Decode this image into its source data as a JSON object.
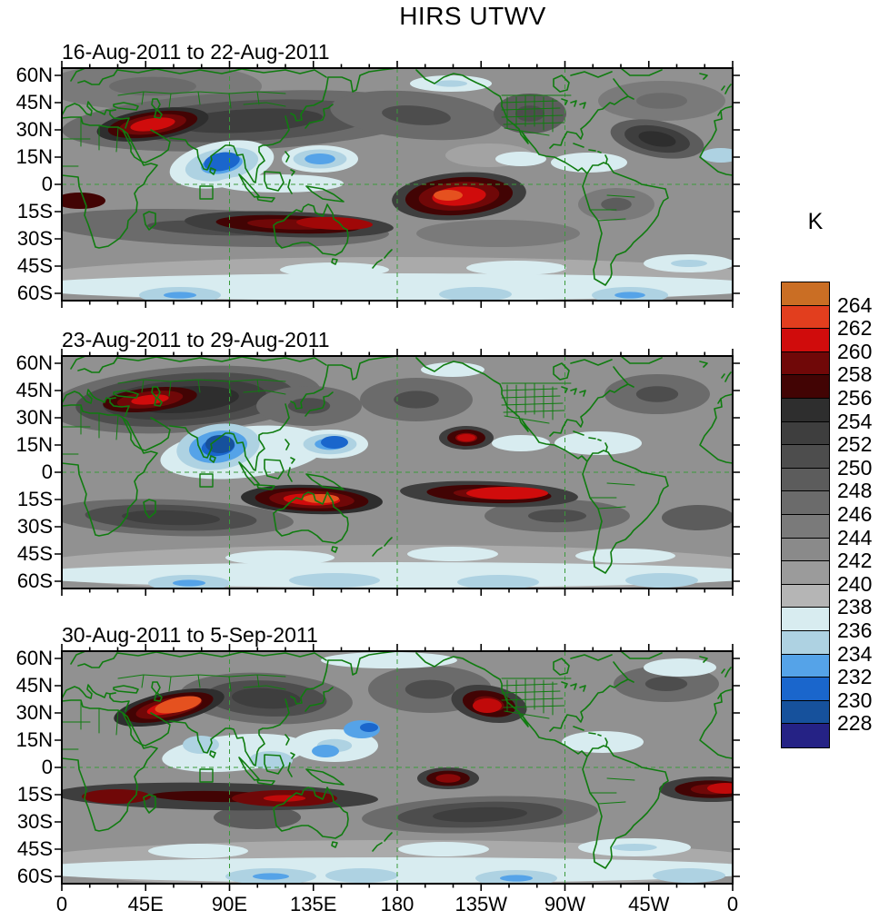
{
  "chart_data": {
    "type": "heatmap",
    "title": "HIRS UTWV",
    "projection": "global cylindrical, 0E-360E, 64N-64S",
    "grid": "dashed green reference lines at equator and 90E/180/90W meridians",
    "x_tick_labels": [
      "0",
      "45E",
      "90E",
      "135E",
      "180",
      "135W",
      "90W",
      "45W",
      "0"
    ],
    "y_tick_labels": [
      "60N",
      "45N",
      "30N",
      "15N",
      "0",
      "15S",
      "30S",
      "45S",
      "60S"
    ],
    "colorbar": {
      "unit_label": "K",
      "tick_values": [
        "264",
        "262",
        "260",
        "258",
        "256",
        "254",
        "252",
        "250",
        "248",
        "246",
        "244",
        "242",
        "240",
        "238",
        "236",
        "234",
        "232",
        "230",
        "228"
      ],
      "colors_top_to_bottom": [
        "#ca6e24",
        "#e23e1e",
        "#d00c0c",
        "#700808",
        "#420404",
        "#2e2e2e",
        "#3e3e3e",
        "#4d4d4d",
        "#5c5c5c",
        "#6b6b6b",
        "#7a7a7a",
        "#8a8a8a",
        "#9b9b9b",
        "#b5b5b5",
        "#d8ecf0",
        "#aed2e2",
        "#55a3e8",
        "#1a66cc",
        "#16519c",
        "#252285"
      ]
    },
    "base_color": "#919191",
    "coast_color": "#107c10",
    "panels": [
      {
        "title": "16-Aug-2011 to 22-Aug-2011",
        "blobs": [
          [
            369,
            234,
            420,
            26,
            0,
            [
              "#aaaaaa"
            ]
          ],
          [
            369,
            241,
            420,
            15,
            0,
            [
              "#d8ecf0"
            ]
          ],
          [
            100,
            20,
            120,
            26,
            0,
            [
              "#7a7a7a",
              "#6b6b6b"
            ]
          ],
          [
            205,
            58,
            205,
            32,
            -3,
            [
              "#6b6b6b",
              "#535353",
              "#3e3e3e"
            ]
          ],
          [
            390,
            52,
            95,
            26,
            5,
            [
              "#6b6b6b",
              "#4d4d4d"
            ]
          ],
          [
            515,
            50,
            40,
            22,
            0,
            [
              "#5c5c5c",
              "#4d4d4d"
            ]
          ],
          [
            660,
            36,
            70,
            22,
            0,
            [
              "#7a7a7a",
              "#6b6b6b"
            ]
          ],
          [
            655,
            78,
            52,
            20,
            10,
            [
              "#5c5c5c",
              "#3e3e3e",
              "#2e2e2e"
            ]
          ],
          [
            170,
            176,
            190,
            20,
            2,
            [
              "#6b6b6b",
              "#4d4d4d"
            ]
          ],
          [
            610,
            150,
            42,
            18,
            0,
            [
              "#7a7a7a",
              "#5c5c5c"
            ]
          ],
          [
            480,
            182,
            90,
            15,
            0,
            [
              "#7a7a7a"
            ]
          ],
          [
            470,
            96,
            48,
            13,
            0,
            [
              "#a3a3a3"
            ]
          ],
          [
            300,
            222,
            60,
            8,
            0,
            [
              "#d8ecf0"
            ]
          ],
          [
            500,
            220,
            55,
            8,
            0,
            [
              "#d8ecf0"
            ]
          ],
          [
            690,
            215,
            50,
            10,
            0,
            [
              "#d8ecf0",
              "#aed2e2"
            ]
          ],
          [
            176,
            106,
            58,
            25,
            -10,
            [
              "#d8ecf0",
              "#aed2e2",
              "#55a3e8"
            ]
          ],
          [
            176,
            103,
            20,
            10,
            -10,
            [
              "#1a66cc"
            ]
          ],
          [
            284,
            100,
            42,
            15,
            0,
            [
              "#d8ecf0",
              "#aed2e2",
              "#55a3e8"
            ]
          ],
          [
            240,
            127,
            70,
            10,
            0,
            [
              "#d8ecf0"
            ]
          ],
          [
            580,
            104,
            42,
            11,
            0,
            [
              "#d8ecf0"
            ]
          ],
          [
            505,
            100,
            28,
            8,
            0,
            [
              "#d8ecf0"
            ]
          ],
          [
            428,
            17,
            45,
            9,
            0,
            [
              "#d8ecf0",
              "#aed2e2"
            ]
          ],
          [
            725,
            96,
            22,
            8,
            0,
            [
              "#aed2e2"
            ]
          ],
          [
            100,
            62,
            62,
            17,
            -8,
            [
              "#2e2e2e",
              "#420404",
              "#700808",
              "#d00c0c"
            ]
          ],
          [
            250,
            172,
            115,
            14,
            2,
            [
              "#3e3e3e",
              "#420404",
              "#700808"
            ]
          ],
          [
            300,
            171,
            42,
            7,
            2,
            [
              "#a00808"
            ]
          ],
          [
            437,
            141,
            74,
            26,
            -4,
            [
              "#3e3e3e",
              "#420404",
              "#700808",
              "#d00c0c"
            ]
          ],
          [
            425,
            140,
            16,
            6,
            0,
            [
              "#e5511f"
            ]
          ],
          [
            20,
            146,
            28,
            9,
            0,
            [
              "#420404"
            ]
          ],
          [
            130,
            250,
            45,
            9,
            0,
            [
              "#aed2e2",
              "#55a3e8"
            ]
          ],
          [
            455,
            249,
            40,
            8,
            0,
            [
              "#aed2e2"
            ]
          ],
          [
            625,
            250,
            42,
            9,
            0,
            [
              "#aed2e2",
              "#55a3e8"
            ]
          ]
        ]
      },
      {
        "title": "23-Aug-2011 to 29-Aug-2011",
        "blobs": [
          [
            369,
            234,
            420,
            26,
            0,
            [
              "#aaaaaa"
            ]
          ],
          [
            369,
            241,
            420,
            14,
            0,
            [
              "#d8ecf0"
            ]
          ],
          [
            135,
            48,
            150,
            36,
            -4,
            [
              "#6b6b6b",
              "#4d4d4d",
              "#3e3e3e",
              "#2e2e2e"
            ]
          ],
          [
            272,
            55,
            58,
            22,
            0,
            [
              "#6b6b6b",
              "#4d4d4d"
            ]
          ],
          [
            390,
            48,
            62,
            24,
            0,
            [
              "#6b6b6b",
              "#4d4d4d"
            ]
          ],
          [
            655,
            42,
            58,
            22,
            0,
            [
              "#6b6b6b",
              "#4d4d4d"
            ]
          ],
          [
            120,
            178,
            135,
            20,
            2,
            [
              "#6b6b6b",
              "#4d4d4d",
              "#3e3e3e"
            ]
          ],
          [
            545,
            176,
            80,
            18,
            0,
            [
              "#6b6b6b",
              "#4d4d4d"
            ]
          ],
          [
            700,
            178,
            40,
            14,
            0,
            [
              "#5c5c5c"
            ]
          ],
          [
            240,
            222,
            60,
            8,
            0,
            [
              "#d8ecf0"
            ]
          ],
          [
            430,
            218,
            50,
            8,
            0,
            [
              "#d8ecf0"
            ]
          ],
          [
            620,
            220,
            55,
            8,
            0,
            [
              "#d8ecf0"
            ]
          ],
          [
            140,
            250,
            45,
            9,
            0,
            [
              "#aed2e2",
              "#55a3e8"
            ]
          ],
          [
            300,
            247,
            50,
            8,
            0,
            [
              "#aed2e2"
            ]
          ],
          [
            480,
            249,
            45,
            8,
            0,
            [
              "#aed2e2"
            ]
          ],
          [
            660,
            247,
            40,
            8,
            0,
            [
              "#aed2e2"
            ]
          ],
          [
            200,
            106,
            92,
            28,
            -6,
            [
              "#d8ecf0"
            ]
          ],
          [
            172,
            100,
            46,
            25,
            -8,
            [
              "#aed2e2",
              "#55a3e8",
              "#1a66cc"
            ]
          ],
          [
            174,
            97,
            16,
            10,
            0,
            [
              "#16519c"
            ]
          ],
          [
            295,
            97,
            42,
            16,
            0,
            [
              "#d8ecf0",
              "#aed2e2",
              "#55a3e8"
            ]
          ],
          [
            300,
            95,
            15,
            7,
            0,
            [
              "#1a66cc"
            ]
          ],
          [
            590,
            96,
            48,
            13,
            0,
            [
              "#d8ecf0"
            ]
          ],
          [
            505,
            96,
            32,
            9,
            0,
            [
              "#d8ecf0"
            ]
          ],
          [
            430,
            15,
            35,
            8,
            0,
            [
              "#d8ecf0"
            ]
          ],
          [
            97,
            48,
            52,
            13,
            -6,
            [
              "#420404",
              "#700808",
              "#d00c0c"
            ]
          ],
          [
            275,
            158,
            78,
            16,
            2,
            [
              "#2e2e2e",
              "#420404",
              "#700808",
              "#d00c0c"
            ]
          ],
          [
            285,
            157,
            20,
            5,
            0,
            [
              "#e5511f"
            ]
          ],
          [
            470,
            152,
            98,
            14,
            2,
            [
              "#3e3e3e",
              "#420404",
              "#700808"
            ]
          ],
          [
            490,
            151,
            45,
            7,
            0,
            [
              "#d00c0c"
            ]
          ],
          [
            445,
            90,
            30,
            13,
            0,
            [
              "#3e3e3e",
              "#420404",
              "#8a0808"
            ]
          ],
          [
            445,
            90,
            10,
            4,
            0,
            [
              "#c00a0a"
            ]
          ]
        ]
      },
      {
        "title": "30-Aug-2011 to 5-Sep-2011",
        "blobs": [
          [
            369,
            234,
            420,
            26,
            0,
            [
              "#aaaaaa"
            ]
          ],
          [
            369,
            241,
            420,
            14,
            0,
            [
              "#d8ecf0"
            ]
          ],
          [
            225,
            52,
            95,
            28,
            3,
            [
              "#6b6b6b",
              "#4d4d4d",
              "#3e3e3e"
            ]
          ],
          [
            405,
            42,
            68,
            26,
            0,
            [
              "#6b6b6b",
              "#4d4d4d"
            ]
          ],
          [
            665,
            36,
            58,
            20,
            0,
            [
              "#6b6b6b",
              "#4d4d4d"
            ]
          ],
          [
            460,
            180,
            130,
            20,
            -2,
            [
              "#6b6b6b",
              "#4d4d4d",
              "#3e3e3e"
            ]
          ],
          [
            215,
            183,
            48,
            13,
            0,
            [
              "#5c5c5c"
            ]
          ],
          [
            150,
            220,
            55,
            8,
            0,
            [
              "#d8ecf0"
            ]
          ],
          [
            420,
            218,
            50,
            8,
            0,
            [
              "#d8ecf0"
            ]
          ],
          [
            630,
            216,
            62,
            10,
            0,
            [
              "#d8ecf0",
              "#aed2e2"
            ]
          ],
          [
            230,
            248,
            50,
            9,
            0,
            [
              "#aed2e2",
              "#55a3e8"
            ]
          ],
          [
            330,
            247,
            40,
            8,
            0,
            [
              "#aed2e2"
            ]
          ],
          [
            500,
            250,
            45,
            9,
            0,
            [
              "#aed2e2",
              "#55a3e8"
            ]
          ],
          [
            690,
            247,
            40,
            8,
            0,
            [
              "#aed2e2"
            ]
          ],
          [
            360,
            10,
            75,
            9,
            0,
            [
              "#d8ecf0"
            ]
          ],
          [
            680,
            18,
            40,
            10,
            0,
            [
              "#d8ecf0"
            ]
          ],
          [
            190,
            112,
            80,
            20,
            -5,
            [
              "#d8ecf0"
            ]
          ],
          [
            153,
            103,
            20,
            10,
            0,
            [
              "#aed2e2"
            ]
          ],
          [
            230,
            120,
            24,
            10,
            0,
            [
              "#aed2e2"
            ]
          ],
          [
            300,
            104,
            48,
            18,
            0,
            [
              "#d8ecf0",
              "#aed2e2"
            ]
          ],
          [
            330,
            86,
            20,
            10,
            0,
            [
              "#55a3e8"
            ]
          ],
          [
            338,
            84,
            10,
            5,
            0,
            [
              "#1a66cc"
            ]
          ],
          [
            290,
            110,
            15,
            7,
            0,
            [
              "#55a3e8"
            ]
          ],
          [
            595,
            100,
            45,
            12,
            0,
            [
              "#d8ecf0"
            ]
          ],
          [
            118,
            62,
            62,
            17,
            -12,
            [
              "#2e2e2e",
              "#420404",
              "#700808",
              "#d00c0c"
            ]
          ],
          [
            128,
            59,
            26,
            8,
            -12,
            [
              "#e5511f"
            ]
          ],
          [
            470,
            58,
            42,
            20,
            10,
            [
              "#3e3e3e",
              "#420404",
              "#700808"
            ]
          ],
          [
            468,
            60,
            16,
            8,
            0,
            [
              "#c00a0a"
            ]
          ],
          [
            170,
            160,
            178,
            15,
            1,
            [
              "#3e3e3e",
              "#420404"
            ]
          ],
          [
            60,
            160,
            38,
            8,
            0,
            [
              "#700808"
            ]
          ],
          [
            245,
            162,
            58,
            9,
            0,
            [
              "#700808",
              "#c00a0a"
            ]
          ],
          [
            425,
            140,
            34,
            12,
            0,
            [
              "#3e3e3e",
              "#420404",
              "#8a0808"
            ]
          ],
          [
            715,
            152,
            58,
            14,
            0,
            [
              "#3e3e3e",
              "#420404",
              "#700808"
            ]
          ],
          [
            730,
            151,
            20,
            6,
            0,
            [
              "#c00a0a"
            ]
          ]
        ]
      }
    ]
  }
}
